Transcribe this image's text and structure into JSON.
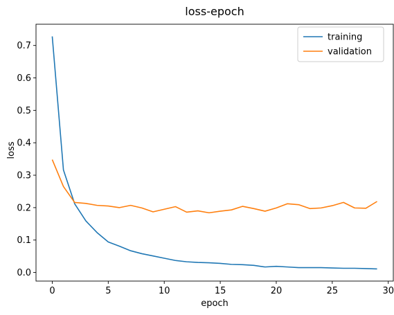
{
  "chart_data": {
    "type": "line",
    "title": "loss-epoch",
    "xlabel": "epoch",
    "ylabel": "loss",
    "xlim": [
      -1.45,
      30.45
    ],
    "ylim": [
      -0.0265,
      0.7655
    ],
    "xticks": [
      0,
      5,
      10,
      15,
      20,
      25,
      30
    ],
    "yticks": [
      0.0,
      0.1,
      0.2,
      0.3,
      0.4,
      0.5,
      0.6,
      0.7
    ],
    "xtick_labels": [
      "0",
      "5",
      "10",
      "15",
      "20",
      "25",
      "30"
    ],
    "ytick_labels": [
      "0.0",
      "0.1",
      "0.2",
      "0.3",
      "0.4",
      "0.5",
      "0.6",
      "0.7"
    ],
    "grid": false,
    "legend_position": "top-right",
    "x": [
      0,
      1,
      2,
      3,
      4,
      5,
      6,
      7,
      8,
      9,
      10,
      11,
      12,
      13,
      14,
      15,
      16,
      17,
      18,
      19,
      20,
      21,
      22,
      23,
      24,
      25,
      26,
      27,
      28,
      29
    ],
    "series": [
      {
        "name": "training",
        "color": "#1f77b4",
        "values": [
          0.728,
          0.316,
          0.212,
          0.159,
          0.123,
          0.094,
          0.081,
          0.067,
          0.058,
          0.051,
          0.044,
          0.037,
          0.033,
          0.031,
          0.03,
          0.028,
          0.025,
          0.024,
          0.022,
          0.017,
          0.019,
          0.017,
          0.015,
          0.015,
          0.015,
          0.014,
          0.013,
          0.013,
          0.012,
          0.011
        ]
      },
      {
        "name": "validation",
        "color": "#ff7f0e",
        "values": [
          0.348,
          0.265,
          0.216,
          0.213,
          0.207,
          0.205,
          0.2,
          0.207,
          0.199,
          0.187,
          0.195,
          0.203,
          0.186,
          0.19,
          0.184,
          0.189,
          0.193,
          0.204,
          0.197,
          0.189,
          0.199,
          0.212,
          0.209,
          0.197,
          0.199,
          0.206,
          0.216,
          0.199,
          0.198,
          0.219
        ]
      }
    ]
  }
}
